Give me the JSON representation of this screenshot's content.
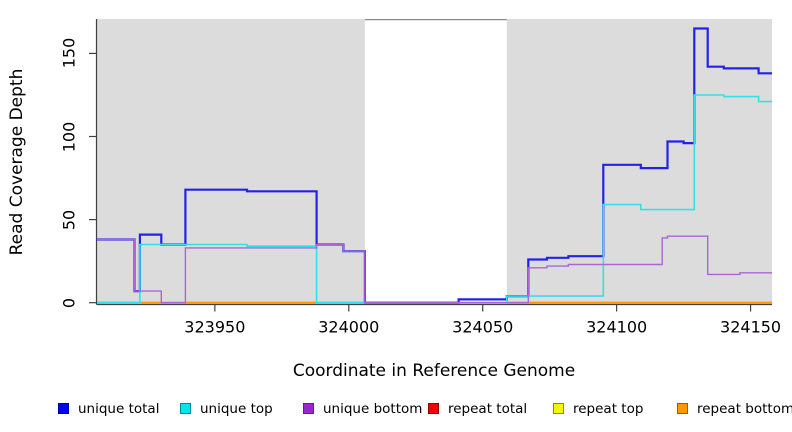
{
  "figure": {
    "y_axis_title": "Read Coverage Depth",
    "x_axis_title": "Coordinate in Reference Genome"
  },
  "axes": {
    "x_domain": [
      323906,
      324158
    ],
    "y_domain": [
      0,
      171
    ],
    "x_ticks": [
      323950,
      324000,
      324050,
      324100,
      324150
    ],
    "y_ticks": [
      0,
      50,
      100,
      150
    ],
    "axis_color": "#404040",
    "grid": false
  },
  "panel": {
    "background_color": "#dcdcdc",
    "highlight_region": {
      "from": 324006,
      "to": 324059,
      "color": "#ffffff",
      "top_border_color": "#8c8c8c"
    }
  },
  "chart_data": {
    "type": "line",
    "line_style": "step-after",
    "title": "",
    "xlabel": "Coordinate in Reference Genome",
    "ylabel": "Read Coverage Depth",
    "xlim": [
      323906,
      324158
    ],
    "ylim": [
      0,
      171
    ],
    "legend_position": "bottom",
    "series": [
      {
        "name": "repeat total",
        "color": "#e03030",
        "width": 1.2,
        "points": [
          [
            323906,
            0
          ],
          [
            324158,
            0
          ]
        ]
      },
      {
        "name": "repeat top",
        "color": "#f0f000",
        "width": 1.2,
        "points": [
          [
            323906,
            0
          ],
          [
            324158,
            0
          ]
        ]
      },
      {
        "name": "repeat bottom",
        "color": "#ff9800",
        "width": 2.2,
        "points": [
          [
            323906,
            0
          ],
          [
            324158,
            0
          ]
        ]
      },
      {
        "name": "unique total",
        "color": "#2222e8",
        "width": 2.2,
        "points": [
          [
            323906,
            38
          ],
          [
            323920,
            7
          ],
          [
            323922,
            41
          ],
          [
            323930,
            35
          ],
          [
            323939,
            68
          ],
          [
            323962,
            67
          ],
          [
            323988,
            35
          ],
          [
            323998,
            31
          ],
          [
            324006,
            0
          ],
          [
            324041,
            2
          ],
          [
            324059,
            4
          ],
          [
            324067,
            26
          ],
          [
            324074,
            27
          ],
          [
            324082,
            28
          ],
          [
            324095,
            83
          ],
          [
            324109,
            81
          ],
          [
            324119,
            97
          ],
          [
            324125,
            96
          ],
          [
            324129,
            165
          ],
          [
            324134,
            142
          ],
          [
            324140,
            141
          ],
          [
            324153,
            138
          ],
          [
            324158,
            138
          ]
        ]
      },
      {
        "name": "unique top",
        "color": "#35dfe8",
        "width": 1.6,
        "points": [
          [
            323906,
            0
          ],
          [
            323922,
            35
          ],
          [
            323962,
            34
          ],
          [
            323988,
            0
          ],
          [
            324059,
            4
          ],
          [
            324095,
            59
          ],
          [
            324109,
            56
          ],
          [
            324129,
            125
          ],
          [
            324140,
            124
          ],
          [
            324153,
            121
          ],
          [
            324158,
            121
          ]
        ]
      },
      {
        "name": "unique bottom",
        "color": "#aa66d4",
        "width": 1.4,
        "points": [
          [
            323906,
            38
          ],
          [
            323920,
            7
          ],
          [
            323930,
            0
          ],
          [
            323939,
            33
          ],
          [
            323988,
            35
          ],
          [
            323998,
            31
          ],
          [
            324006,
            0
          ],
          [
            324067,
            21
          ],
          [
            324074,
            22
          ],
          [
            324082,
            23
          ],
          [
            324117,
            39
          ],
          [
            324119,
            40
          ],
          [
            324134,
            17
          ],
          [
            324146,
            18
          ],
          [
            324158,
            18
          ]
        ]
      }
    ]
  },
  "legend": {
    "items": [
      {
        "label": "unique total",
        "fill": "#0000f5",
        "border": "#0000a0"
      },
      {
        "label": "unique top",
        "fill": "#00e5ee",
        "border": "#00869e"
      },
      {
        "label": "unique bottom",
        "fill": "#9b26ce",
        "border": "#681b8e"
      },
      {
        "label": "repeat total",
        "fill": "#f00000",
        "border": "#900000"
      },
      {
        "label": "repeat top",
        "fill": "#f5f500",
        "border": "#8b8b00"
      },
      {
        "label": "repeat bottom",
        "fill": "#ff9800",
        "border": "#a05a00"
      }
    ]
  }
}
